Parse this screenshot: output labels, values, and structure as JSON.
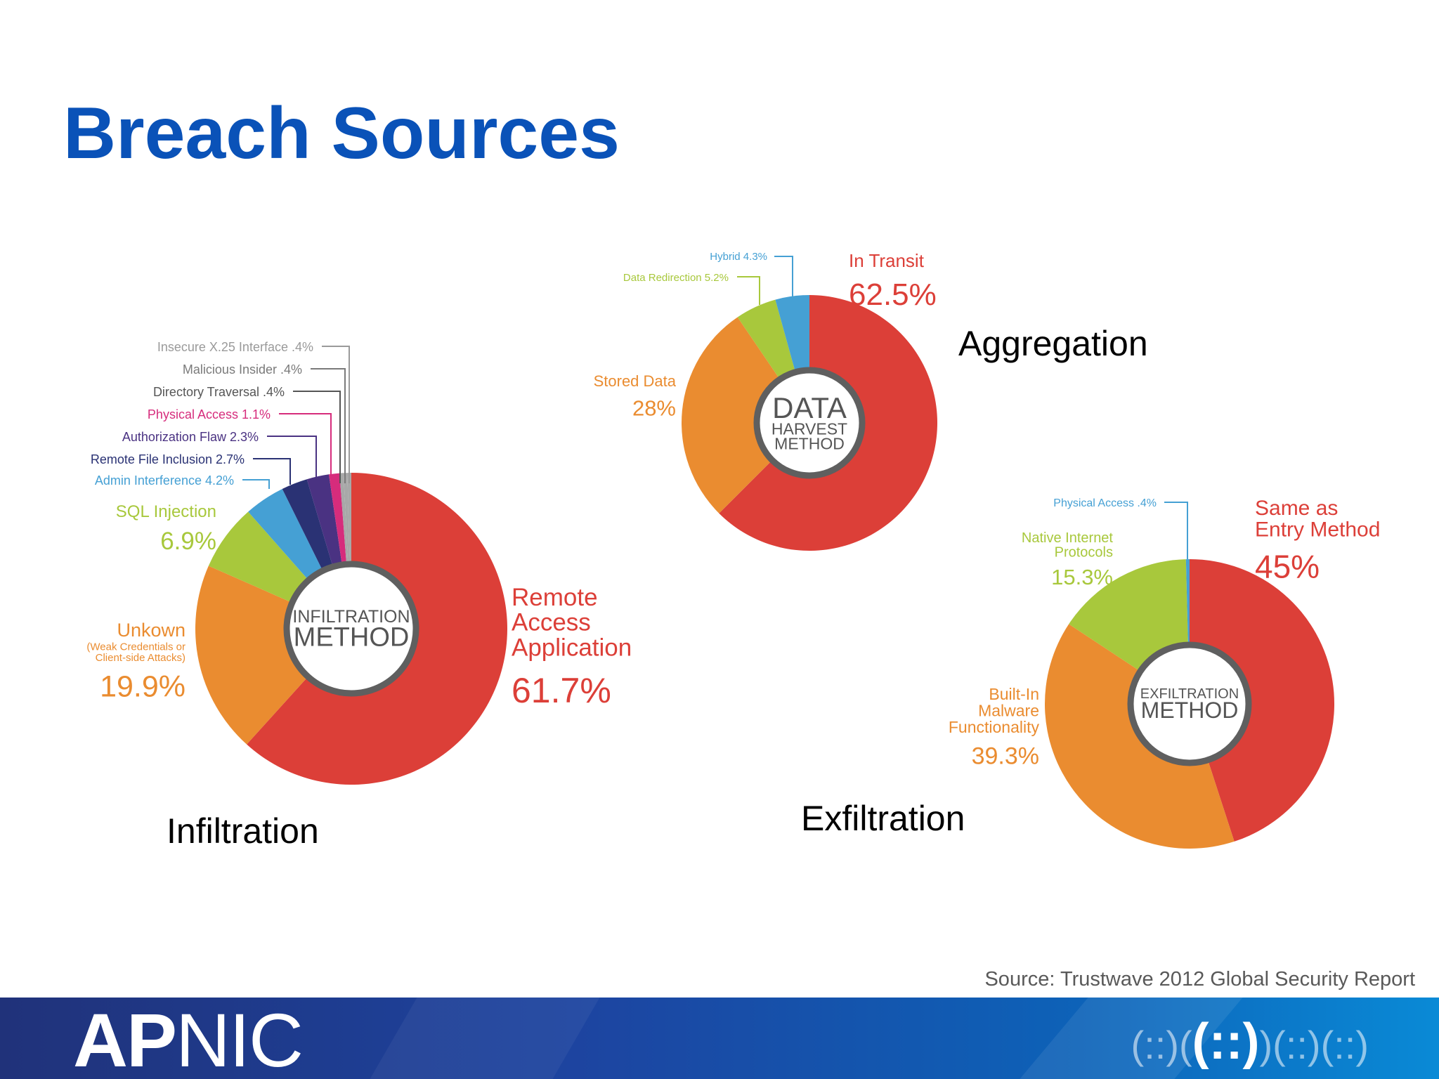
{
  "slide": {
    "title": "Breach Sources",
    "source": "Source: Trustwave 2012 Global Security Report",
    "captions": {
      "infiltration": "Infiltration",
      "aggregation": "Aggregation",
      "exfiltration": "Exfiltration"
    },
    "footer": {
      "logo_bold": "AP",
      "logo_thin": "NIC"
    }
  },
  "colors": {
    "title": "#0a52b8",
    "red": "#dc3f38",
    "orange": "#ea8c30",
    "green": "#a8c83c",
    "lightblue": "#45a0d4",
    "navy": "#2a3274",
    "indigo": "#4a3282",
    "purple": "#6e2e82",
    "magenta": "#d62c7c",
    "gray": "#a8a8a8"
  },
  "chart_data": [
    {
      "type": "pie",
      "id": "infiltration",
      "center_label": [
        "INFILTRATION",
        "METHOD"
      ],
      "slices": [
        {
          "label": "Remote Access Application",
          "label_lines": [
            "Remote",
            "Access",
            "Application"
          ],
          "value": 61.7,
          "value_text": "61.7%",
          "color": "red",
          "label_color": "#dc3f38"
        },
        {
          "label": "Unkown",
          "label_lines": [
            "Unkown"
          ],
          "sublabel_lines": [
            "(Weak Credentials or",
            "Client-side Attacks)"
          ],
          "value": 19.9,
          "value_text": "19.9%",
          "color": "orange",
          "label_color": "#ea8c30"
        },
        {
          "label": "SQL Injection",
          "label_lines": [
            "SQL Injection"
          ],
          "value": 6.9,
          "value_text": "6.9%",
          "color": "green",
          "label_color": "#a8c83c"
        },
        {
          "label": "Admin Interference",
          "value": 4.2,
          "text": "Admin Interference 4.2%",
          "color": "lightblue",
          "label_color": "#45a0d4"
        },
        {
          "label": "Remote File Inclusion",
          "value": 2.7,
          "text": "Remote File Inclusion 2.7%",
          "color": "navy",
          "label_color": "#2a3274"
        },
        {
          "label": "Authorization Flaw",
          "value": 2.3,
          "text": "Authorization Flaw 2.3%",
          "color": "indigo",
          "label_color": "#4a3282"
        },
        {
          "label": "Physical Access",
          "value": 1.1,
          "text": "Physical Access 1.1%",
          "color": "magenta",
          "label_color": "#d62c7c"
        },
        {
          "label": "Directory Traversal",
          "value": 0.4,
          "text": "Directory Traversal .4%",
          "color": "gray",
          "label_color": "#555555"
        },
        {
          "label": "Malicious Insider",
          "value": 0.4,
          "text": "Malicious Insider .4%",
          "color": "gray",
          "label_color": "#7a7a7a"
        },
        {
          "label": "Insecure X.25 Interface",
          "value": 0.4,
          "text": "Insecure X.25 Interface .4%",
          "color": "gray",
          "label_color": "#9a9a9a"
        }
      ]
    },
    {
      "type": "pie",
      "id": "data-harvest",
      "center_label": [
        "DATA",
        "HARVEST",
        "METHOD"
      ],
      "slices": [
        {
          "label": "In Transit",
          "label_lines": [
            "In Transit"
          ],
          "value": 62.5,
          "value_text": "62.5%",
          "color": "red",
          "label_color": "#dc3f38"
        },
        {
          "label": "Stored Data",
          "label_lines": [
            "Stored Data"
          ],
          "value": 28,
          "value_text": "28%",
          "color": "orange",
          "label_color": "#ea8c30"
        },
        {
          "label": "Data Redirection",
          "value": 5.2,
          "text": "Data Redirection 5.2%",
          "color": "green",
          "label_color": "#a8c83c"
        },
        {
          "label": "Hybrid",
          "value": 4.3,
          "text": "Hybrid 4.3%",
          "color": "lightblue",
          "label_color": "#45a0d4"
        }
      ]
    },
    {
      "type": "pie",
      "id": "exfiltration",
      "center_label": [
        "EXFILTRATION",
        "METHOD"
      ],
      "slices": [
        {
          "label": "Same as Entry Method",
          "label_lines": [
            "Same as",
            "Entry Method"
          ],
          "value": 45,
          "value_text": "45%",
          "color": "red",
          "label_color": "#dc3f38"
        },
        {
          "label": "Built-In Malware Functionality",
          "label_lines": [
            "Built-In",
            "Malware",
            "Functionality"
          ],
          "value": 39.3,
          "value_text": "39.3%",
          "color": "orange",
          "label_color": "#ea8c30"
        },
        {
          "label": "Native Internet Protocols",
          "label_lines": [
            "Native Internet",
            "Protocols"
          ],
          "value": 15.3,
          "value_text": "15.3%",
          "color": "green",
          "label_color": "#a8c83c"
        },
        {
          "label": "Physical Access",
          "value": 0.4,
          "text": "Physical Access .4%",
          "color": "lightblue",
          "label_color": "#45a0d4"
        }
      ]
    }
  ]
}
